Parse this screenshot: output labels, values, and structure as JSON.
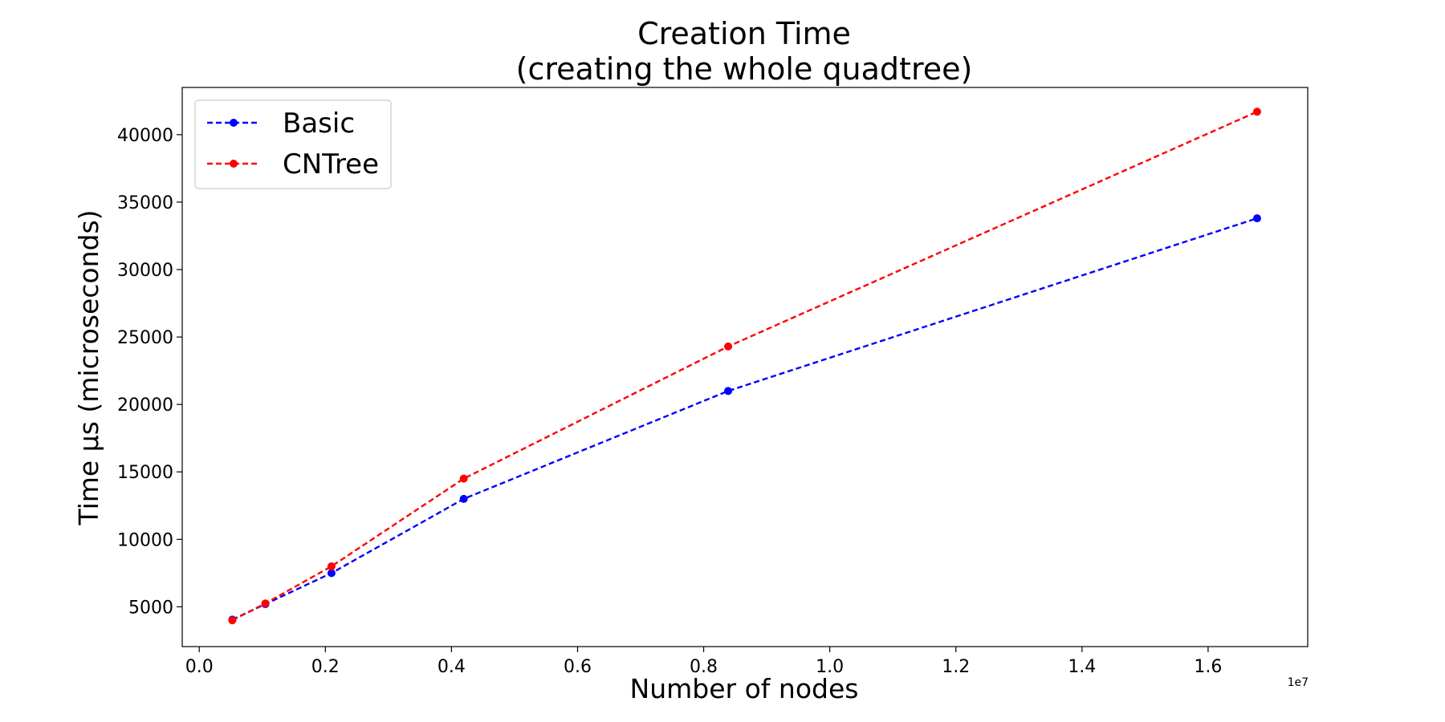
{
  "chart_data": {
    "type": "line",
    "title": "Creation Time",
    "subtitle": "(creating the whole quadtree)",
    "xlabel": "Number of nodes",
    "ylabel": "Time µs (microseconds)",
    "x_offset_label": "1e7",
    "xlim": [
      -0.027,
      1.758
    ],
    "ylim": [
      2050,
      43500
    ],
    "x_ticks": [
      0.0,
      0.2,
      0.4,
      0.6,
      0.8,
      1.0,
      1.2,
      1.4,
      1.6
    ],
    "x_tick_labels": [
      "0.0",
      "0.2",
      "0.4",
      "0.6",
      "0.8",
      "1.0",
      "1.2",
      "1.4",
      "1.6"
    ],
    "y_ticks": [
      5000,
      10000,
      15000,
      20000,
      25000,
      30000,
      35000,
      40000
    ],
    "y_tick_labels": [
      "5000",
      "10000",
      "15000",
      "20000",
      "25000",
      "30000",
      "35000",
      "40000"
    ],
    "grid": false,
    "legend_position": "top-left",
    "x": [
      0.0524288,
      0.1048576,
      0.2097152,
      0.4194304,
      0.8388608,
      1.6777216
    ],
    "series": [
      {
        "name": "Basic",
        "color": "#0000ff",
        "values": [
          4050,
          5200,
          7500,
          13000,
          21000,
          33800
        ]
      },
      {
        "name": "CNTree",
        "color": "#ff0000",
        "values": [
          4000,
          5250,
          8000,
          14500,
          24300,
          41700
        ]
      }
    ]
  }
}
